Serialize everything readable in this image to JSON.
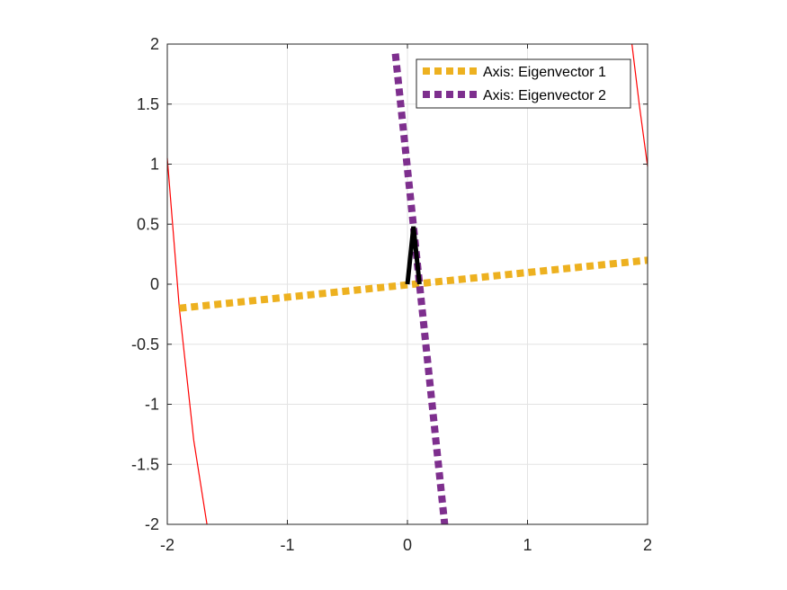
{
  "chart_data": {
    "type": "line",
    "title": "",
    "xlabel": "",
    "ylabel": "",
    "xlim": [
      -2,
      2
    ],
    "ylim": [
      -2,
      2
    ],
    "grid": true,
    "legend_position": "top-right",
    "x_ticks": [
      -2,
      -1,
      0,
      1,
      2
    ],
    "y_ticks": [
      -2,
      -1.5,
      -1,
      -0.5,
      0,
      0.5,
      1,
      1.5,
      2
    ],
    "x_tick_labels": [
      "-2",
      "-1",
      "0",
      "1",
      "2"
    ],
    "y_tick_labels": [
      "-2",
      "-1.5",
      "-1",
      "-0.5",
      "0",
      "0.5",
      "1",
      "1.5",
      "2"
    ],
    "series": [
      {
        "name": "Axis: Eigenvector 1",
        "color": "#EDB120",
        "style": "dotted",
        "points": [
          [
            -1.9,
            -0.2
          ],
          [
            2.0,
            0.2
          ]
        ]
      },
      {
        "name": "Axis: Eigenvector 2",
        "color": "#7E2F8E",
        "style": "dotted",
        "points": [
          [
            -0.1,
            1.92
          ],
          [
            0.31,
            -2.0
          ]
        ]
      }
    ],
    "curves": [
      {
        "color": "#FF0000",
        "points": [
          [
            -2.0,
            1.05
          ],
          [
            -1.9,
            -0.2
          ],
          [
            -1.78,
            -1.3
          ],
          [
            -1.67,
            -2.0
          ]
        ]
      },
      {
        "color": "#FF0000",
        "points": [
          [
            1.87,
            2.0
          ],
          [
            1.93,
            1.5
          ],
          [
            2.0,
            0.98
          ]
        ]
      }
    ],
    "vectors": [
      {
        "color": "#000000",
        "points": [
          [
            0.0,
            0.0
          ],
          [
            0.05,
            0.48
          ],
          [
            0.1,
            0.0
          ]
        ]
      }
    ]
  }
}
